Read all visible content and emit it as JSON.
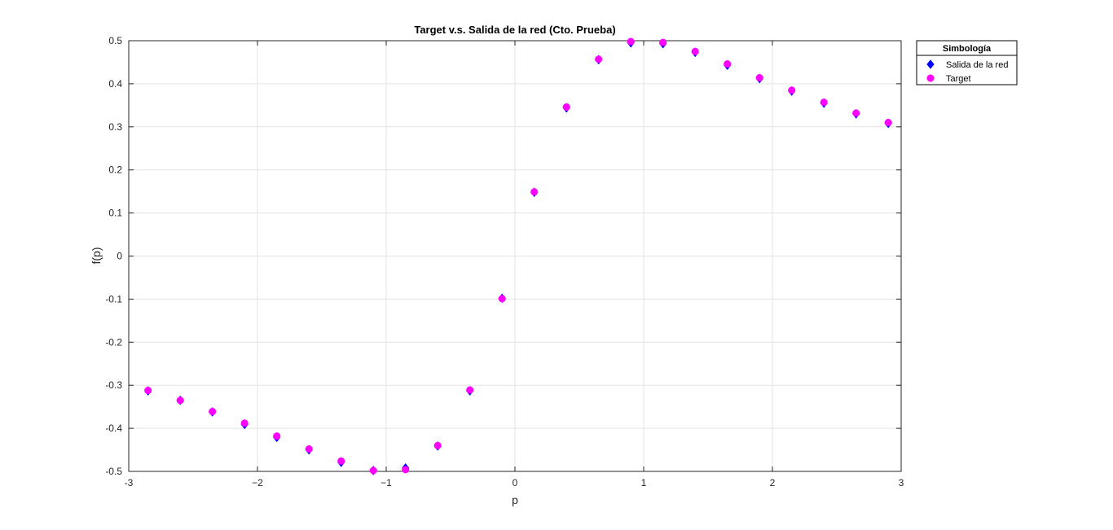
{
  "chart_data": {
    "type": "scatter",
    "title": "Target v.s. Salida de la red (Cto. Prueba)",
    "xlabel": "p",
    "ylabel": "f(p)",
    "xlim": [
      -3,
      3
    ],
    "ylim": [
      -0.5,
      0.5
    ],
    "xticks": [
      -3,
      -2,
      -1,
      0,
      1,
      2,
      3
    ],
    "xtick_labels": [
      "-3",
      "−2",
      "−1",
      "0",
      "1",
      "2",
      "3"
    ],
    "yticks": [
      -0.5,
      -0.4,
      -0.3,
      -0.2,
      -0.1,
      0,
      0.1,
      0.2,
      0.3,
      0.4,
      0.5
    ],
    "ytick_labels": [
      "-0.5",
      "-0.4",
      "-0.3",
      "-0.2",
      "-0.1",
      "0",
      "0.1",
      "0.2",
      "0.3",
      "0.4",
      "0.5"
    ],
    "grid": true,
    "legend": {
      "title": "Simbología",
      "position": "outside-top-right"
    },
    "x": [
      -2.85,
      -2.6,
      -2.35,
      -2.1,
      -1.85,
      -1.6,
      -1.35,
      -1.1,
      -0.85,
      -0.6,
      -0.35,
      -0.1,
      0.15,
      0.4,
      0.65,
      0.9,
      1.15,
      1.4,
      1.65,
      1.9,
      2.15,
      2.4,
      2.65,
      2.9
    ],
    "series": [
      {
        "name": "Salida de la red",
        "marker": "diamond",
        "color": "#0000ff",
        "values": [
          -0.313,
          -0.335,
          -0.362,
          -0.391,
          -0.421,
          -0.45,
          -0.479,
          -0.498,
          -0.492,
          -0.441,
          -0.313,
          -0.098,
          0.148,
          0.344,
          0.456,
          0.495,
          0.493,
          0.473,
          0.443,
          0.412,
          0.383,
          0.355,
          0.33,
          0.308
        ]
      },
      {
        "name": "Target",
        "marker": "circle",
        "color": "#ff00ff",
        "values": [
          -0.312,
          -0.335,
          -0.361,
          -0.388,
          -0.418,
          -0.448,
          -0.476,
          -0.498,
          -0.496,
          -0.44,
          -0.311,
          -0.099,
          0.149,
          0.346,
          0.457,
          0.498,
          0.496,
          0.475,
          0.446,
          0.414,
          0.385,
          0.357,
          0.332,
          0.31
        ]
      }
    ]
  }
}
